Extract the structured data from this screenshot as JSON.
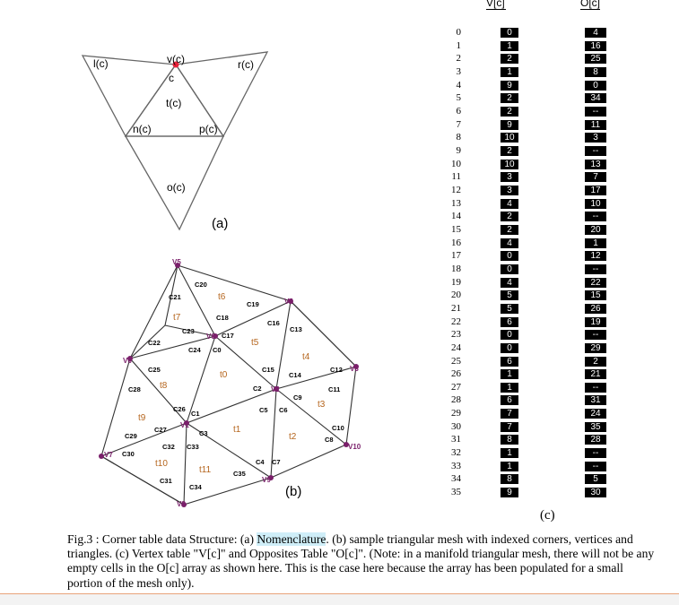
{
  "diagram_a": {
    "labels": {
      "l": "l(c)",
      "v": "v(c)",
      "r": "r(c)",
      "c": "c",
      "t": "t(c)",
      "n": "n(c)",
      "p": "p(c)",
      "o": "o(c)"
    },
    "sublabel": "(a)"
  },
  "diagram_b": {
    "sublabel": "(b)",
    "vertices": [
      "V5",
      "V4",
      "V6",
      "V3",
      "V2",
      "V1",
      "V0",
      "V7",
      "V10",
      "V8",
      "V9"
    ],
    "triangles": [
      "t0",
      "t1",
      "t2",
      "t3",
      "t4",
      "t5",
      "t6",
      "t7",
      "t8",
      "t9",
      "t10",
      "t11"
    ],
    "corners": [
      "C0",
      "C1",
      "C2",
      "C3",
      "C4",
      "C5",
      "C6",
      "C7",
      "C8",
      "C9",
      "C10",
      "C11",
      "C12",
      "C13",
      "C14",
      "C15",
      "C16",
      "C17",
      "C18",
      "C19",
      "C20",
      "C21",
      "C22",
      "C23",
      "C24",
      "C25",
      "C26",
      "C27",
      "C28",
      "C29",
      "C30",
      "C31",
      "C32",
      "C33",
      "C34",
      "C35"
    ]
  },
  "table": {
    "v_header": "V[c]",
    "o_header": "O[c]",
    "sublabel": "(c)",
    "indices": [
      "0",
      "1",
      "2",
      "3",
      "4",
      "5",
      "6",
      "7",
      "8",
      "9",
      "10",
      "11",
      "12",
      "13",
      "14",
      "15",
      "16",
      "17",
      "18",
      "19",
      "20",
      "21",
      "22",
      "23",
      "24",
      "25",
      "26",
      "27",
      "28",
      "29",
      "30",
      "31",
      "32",
      "33",
      "34",
      "35"
    ],
    "v_values": [
      "0",
      "1",
      "2",
      "1",
      "9",
      "2",
      "2",
      "9",
      "10",
      "2",
      "10",
      "3",
      "3",
      "4",
      "2",
      "2",
      "4",
      "0",
      "0",
      "4",
      "5",
      "5",
      "6",
      "0",
      "0",
      "6",
      "1",
      "1",
      "6",
      "7",
      "7",
      "8",
      "1",
      "1",
      "8",
      "9"
    ],
    "o_values": [
      "4",
      "16",
      "25",
      "8",
      "0",
      "34",
      "--",
      "11",
      "3",
      "--",
      "13",
      "7",
      "17",
      "10",
      "--",
      "20",
      "1",
      "12",
      "--",
      "22",
      "15",
      "26",
      "19",
      "--",
      "29",
      "2",
      "21",
      "--",
      "31",
      "24",
      "35",
      "28",
      "--",
      "--",
      "5",
      "30"
    ]
  },
  "caption": {
    "prefix": "Fig.3 : Corner table data Structure: (a) ",
    "highlight": "Nomenclature",
    "rest": ". (b) sample triangular mesh with indexed corners, vertices and triangles. (c) Vertex table \"V[c]\" and Opposites Table \"O[c]\". (Note: in a manifold triangular mesh, there will not be any empty cells in the O[c] array as shown here. This is the case here because the array has been populated for a small portion of the mesh only)."
  }
}
